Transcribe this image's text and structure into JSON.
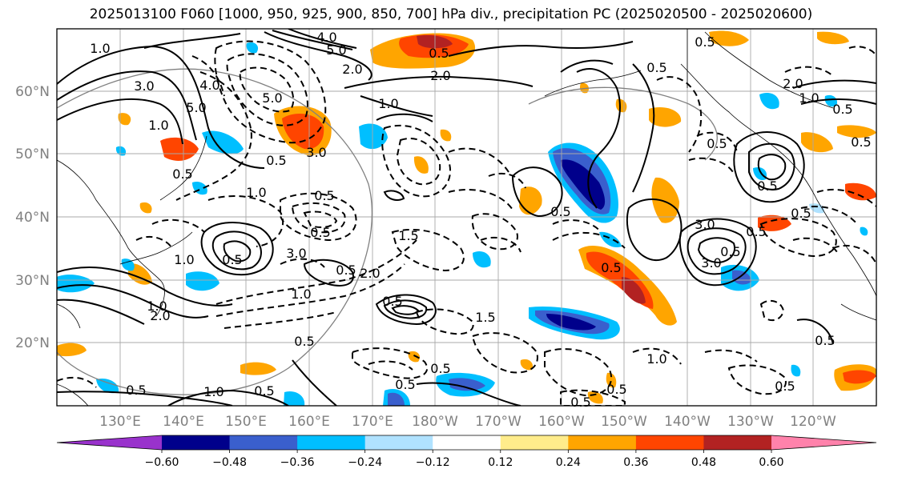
{
  "title": "2025013100 F060 [1000, 950, 925, 900, 850, 700] hPa div., precipitation PC (2025020500 - 2025020600)",
  "lat_labels": [
    "60°N",
    "50°N",
    "40°N",
    "30°N",
    "20°N"
  ],
  "lon_labels": [
    "130°E",
    "140°E",
    "150°E",
    "160°E",
    "170°E",
    "180°W",
    "170°W",
    "160°W",
    "150°W",
    "140°W",
    "130°W",
    "120°W"
  ],
  "colorbar": {
    "tick_labels": [
      "−0.60",
      "−0.48",
      "−0.36",
      "−0.24",
      "−0.12",
      "0.12",
      "0.24",
      "0.36",
      "0.48",
      "0.60"
    ],
    "colors": [
      "#9932cc",
      "#00008b",
      "#3a5fcd",
      "#00bfff",
      "#b0e2ff",
      "#ffffff",
      "#ffec8b",
      "#ffa500",
      "#ff4500",
      "#b22222",
      "#ff82ab"
    ]
  },
  "contour_labels": [
    "1.0",
    "4.0",
    "5.0",
    "4.0",
    "2.0",
    "3.0",
    "2.0",
    "0.5",
    "5.0",
    "5.0",
    "1.0",
    "3.0",
    "1.0",
    "0.5",
    "0.5",
    "1.0",
    "0.5",
    "0.5",
    "0.5",
    "1.0",
    "3.0",
    "0.5",
    "1.0",
    "2.0",
    "1.0",
    "2.0",
    "0.5",
    "1.5",
    "1.5",
    "0.5",
    "0.5",
    "0.5",
    "0.5",
    "0.5",
    "1.0",
    "0.5",
    "0.5",
    "0.5",
    "0.5",
    "1.0",
    "3.0",
    "3.0",
    "0.5",
    "0.5",
    "0.5",
    "0.5",
    "0.5",
    "0.5",
    "1.0",
    "2.0",
    "0.5",
    "0.5",
    "0.5",
    "0.5",
    "0.5"
  ]
}
